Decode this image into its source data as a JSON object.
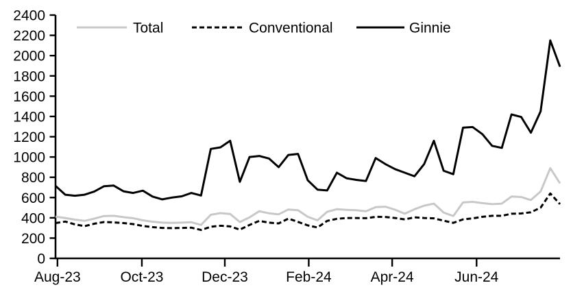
{
  "chart_data": {
    "type": "line",
    "title": "",
    "xlabel": "",
    "ylabel": "",
    "ylim": [
      0,
      2400
    ],
    "ytick_step": 200,
    "ytick_labels": [
      "0",
      "200",
      "400",
      "600",
      "800",
      "1000",
      "1200",
      "1400",
      "1600",
      "1800",
      "2000",
      "2200",
      "2400"
    ],
    "grid": false,
    "legend_position": "top-inside-horizontal",
    "x_unit": "weekly",
    "x_ticks": [
      {
        "label": "Aug-23",
        "pos": 0.2
      },
      {
        "label": "Oct-23",
        "pos": 8.9
      },
      {
        "label": "Dec-23",
        "pos": 17.45
      },
      {
        "label": "Feb-24",
        "pos": 26.1
      },
      {
        "label": "Apr-24",
        "pos": 34.7
      },
      {
        "label": "Jun-24",
        "pos": 43.4
      }
    ],
    "series": [
      {
        "name": "Total",
        "color": "#c8c8c8",
        "dashed": false,
        "values": [
          412,
          398,
          382,
          370,
          392,
          418,
          420,
          406,
          396,
          375,
          362,
          352,
          350,
          352,
          356,
          330,
          430,
          446,
          438,
          358,
          405,
          465,
          445,
          435,
          482,
          475,
          410,
          375,
          460,
          485,
          478,
          475,
          465,
          505,
          510,
          480,
          440,
          485,
          520,
          540,
          452,
          418,
          552,
          558,
          545,
          535,
          540,
          610,
          605,
          575,
          660,
          890,
          740
        ]
      },
      {
        "name": "Conventional",
        "color": "#000000",
        "dashed": true,
        "values": [
          348,
          363,
          335,
          318,
          342,
          358,
          355,
          348,
          338,
          320,
          308,
          300,
          298,
          300,
          303,
          280,
          312,
          322,
          315,
          283,
          330,
          370,
          352,
          345,
          392,
          360,
          325,
          305,
          370,
          390,
          398,
          398,
          396,
          410,
          408,
          398,
          385,
          405,
          398,
          395,
          372,
          350,
          385,
          395,
          410,
          420,
          420,
          440,
          443,
          455,
          500,
          640,
          535
        ]
      },
      {
        "name": "Ginnie",
        "color": "#000000",
        "dashed": false,
        "values": [
          715,
          628,
          618,
          628,
          660,
          712,
          718,
          662,
          645,
          668,
          610,
          582,
          600,
          612,
          645,
          620,
          1080,
          1095,
          1160,
          755,
          1000,
          1010,
          985,
          900,
          1020,
          1030,
          770,
          678,
          670,
          845,
          790,
          774,
          763,
          990,
          930,
          880,
          845,
          810,
          930,
          1160,
          865,
          830,
          1290,
          1295,
          1225,
          1110,
          1090,
          1420,
          1395,
          1240,
          1450,
          2150,
          1890
        ]
      }
    ],
    "axis_color": "#000000"
  }
}
